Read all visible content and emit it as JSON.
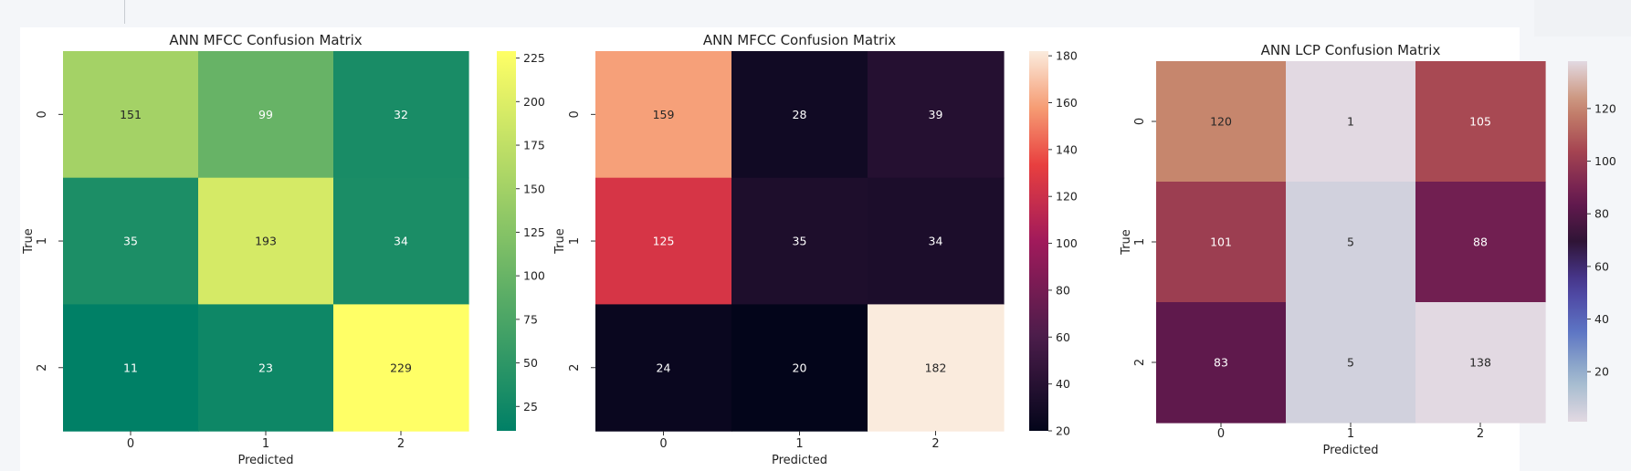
{
  "chart_data": [
    {
      "type": "heatmap",
      "title": "ANN MFCC Confusion Matrix",
      "xlabel": "Predicted",
      "ylabel": "True",
      "x_categories": [
        "0",
        "1",
        "2"
      ],
      "y_categories": [
        "0",
        "1",
        "2"
      ],
      "values": [
        [
          151,
          99,
          32
        ],
        [
          35,
          193,
          34
        ],
        [
          11,
          23,
          229
        ]
      ],
      "colormap": "summer",
      "colorbar": {
        "min": 11,
        "max": 229,
        "ticks": [
          25,
          50,
          75,
          100,
          125,
          150,
          175,
          200,
          225
        ]
      }
    },
    {
      "type": "heatmap",
      "title": "ANN MFCC Confusion Matrix",
      "xlabel": "Predicted",
      "ylabel": "True",
      "x_categories": [
        "0",
        "1",
        "2"
      ],
      "y_categories": [
        "0",
        "1",
        "2"
      ],
      "values": [
        [
          159,
          28,
          39
        ],
        [
          125,
          35,
          34
        ],
        [
          24,
          20,
          182
        ]
      ],
      "colormap": "rocket",
      "colorbar": {
        "min": 20,
        "max": 182,
        "ticks": [
          20,
          40,
          60,
          80,
          100,
          120,
          140,
          160,
          180
        ]
      }
    },
    {
      "type": "heatmap",
      "title": "ANN LCP Confusion Matrix",
      "xlabel": "Predicted",
      "ylabel": "True",
      "x_categories": [
        "0",
        "1",
        "2"
      ],
      "y_categories": [
        "0",
        "1",
        "2"
      ],
      "values": [
        [
          120,
          1,
          105
        ],
        [
          101,
          5,
          88
        ],
        [
          83,
          5,
          138
        ]
      ],
      "colormap": "twilight",
      "colorbar": {
        "min": 1,
        "max": 138,
        "ticks": [
          20,
          40,
          60,
          80,
          100,
          120
        ]
      }
    }
  ]
}
